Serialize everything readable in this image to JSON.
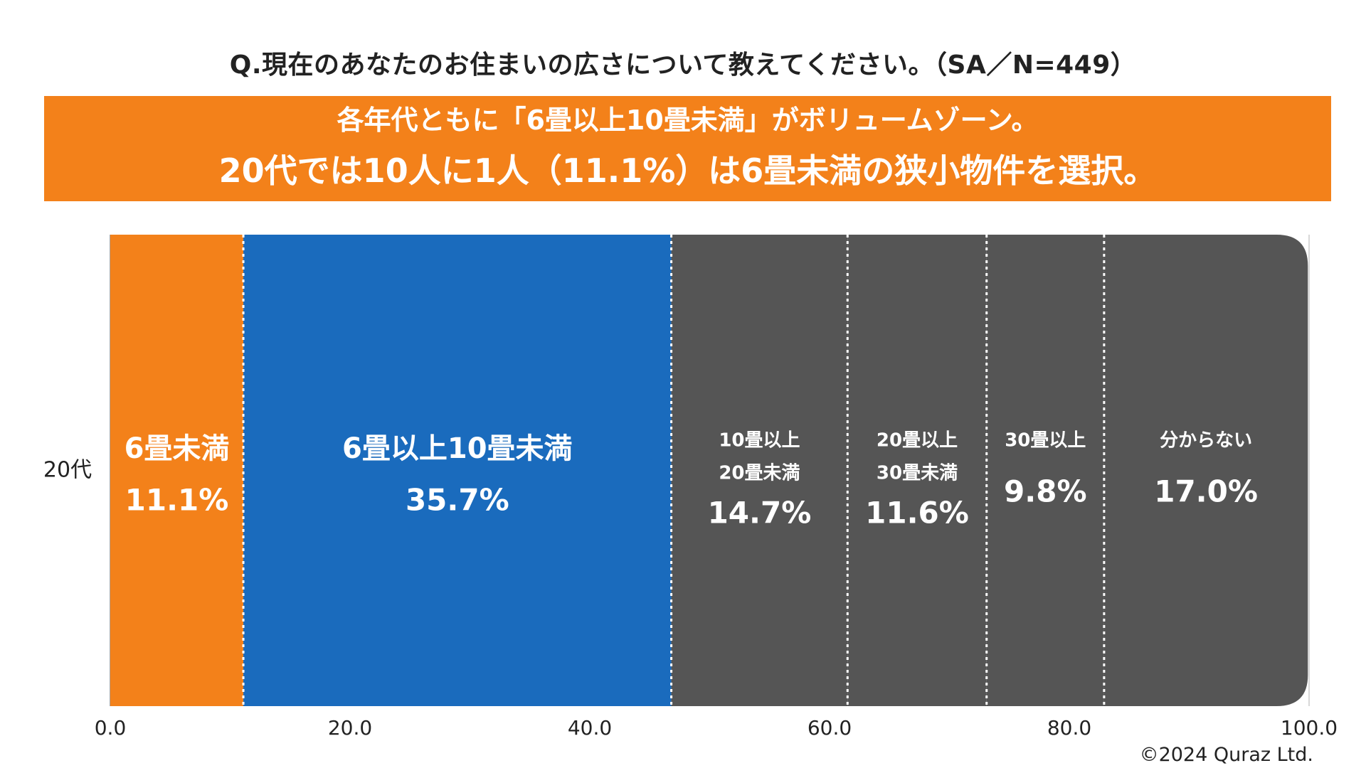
{
  "title": "Q.現在のあなたのお住まいの広さについて教えてください。（SA／N=449）",
  "banner": {
    "line1": "各年代ともに「6畳以上10畳未満」がボリュームゾーン。",
    "line2": "20代では10人に1人（11.1%）は6畳未満の狭小物件を選択。"
  },
  "copyright": "©2024 Quraz Ltd.",
  "colors": {
    "orange": "#f3811a",
    "blue": "#1a6bbd",
    "gray": "#555555",
    "divider": "#ffffff"
  },
  "chart_data": {
    "type": "bar",
    "orientation": "horizontal-stacked",
    "category": "20代",
    "xlim": [
      0,
      100
    ],
    "xticks": [
      "0.0",
      "20.0",
      "40.0",
      "60.0",
      "80.0",
      "100.0"
    ],
    "series": [
      {
        "name": "6畳未満",
        "label_lines": [
          "6畳未満"
        ],
        "value": 11.1,
        "value_label": "11.1%",
        "color": "#f3811a",
        "size": "large"
      },
      {
        "name": "6畳以上10畳未満",
        "label_lines": [
          "6畳以上10畳未満"
        ],
        "value": 35.7,
        "value_label": "35.7%",
        "color": "#1a6bbd",
        "size": "large"
      },
      {
        "name": "10畳以上20畳未満",
        "label_lines": [
          "10畳以上",
          "20畳未満"
        ],
        "value": 14.7,
        "value_label": "14.7%",
        "color": "#555555",
        "size": "small"
      },
      {
        "name": "20畳以上30畳未満",
        "label_lines": [
          "20畳以上",
          "30畳未満"
        ],
        "value": 11.6,
        "value_label": "11.6%",
        "color": "#555555",
        "size": "small"
      },
      {
        "name": "30畳以上",
        "label_lines": [
          "30畳以上"
        ],
        "value": 9.8,
        "value_label": "9.8%",
        "color": "#555555",
        "size": "small"
      },
      {
        "name": "分からない",
        "label_lines": [
          "分からない"
        ],
        "value": 17.0,
        "value_label": "17.0%",
        "color": "#555555",
        "size": "small"
      }
    ]
  }
}
